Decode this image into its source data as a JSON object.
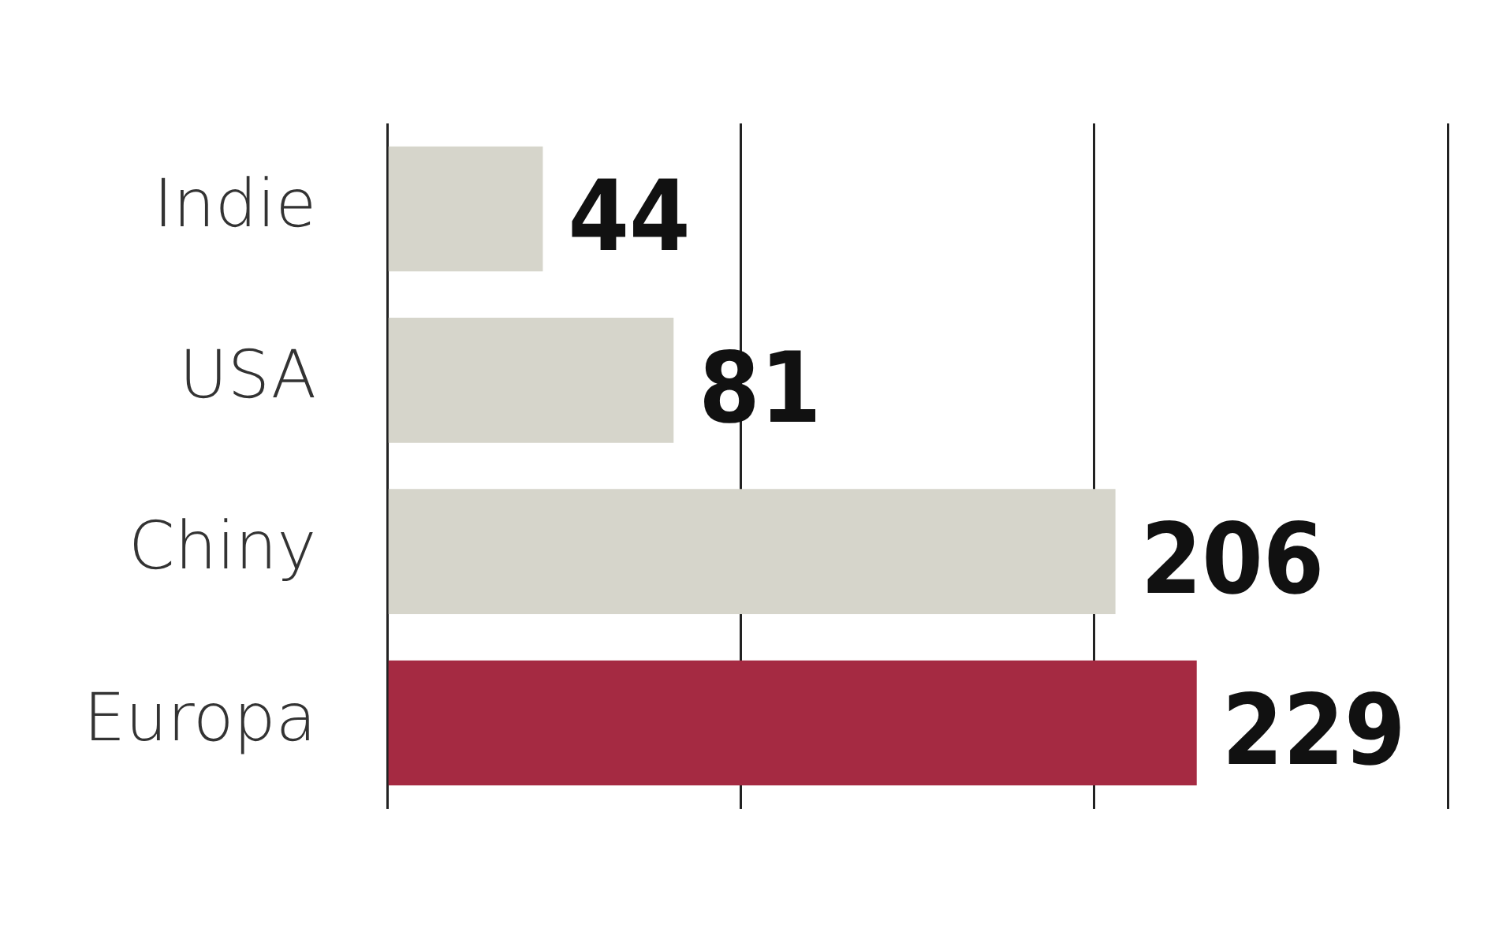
{
  "chart_data": {
    "type": "bar",
    "orientation": "horizontal",
    "categories": [
      "Indie",
      "USA",
      "Chiny",
      "Europa"
    ],
    "values": [
      44,
      81,
      206,
      229
    ],
    "colors": [
      "#d6d5cb",
      "#d6d5cb",
      "#d6d5cb",
      "#a52a42"
    ],
    "xlim": [
      0,
      300
    ],
    "xticks": [
      {
        "value": 0,
        "label": null
      },
      {
        "value": 100,
        "label": null
      },
      {
        "value": 200,
        "label": null
      },
      {
        "value": 300,
        "label": null
      }
    ],
    "grid": "x",
    "tick_labels": "y",
    "data_labels": true
  }
}
